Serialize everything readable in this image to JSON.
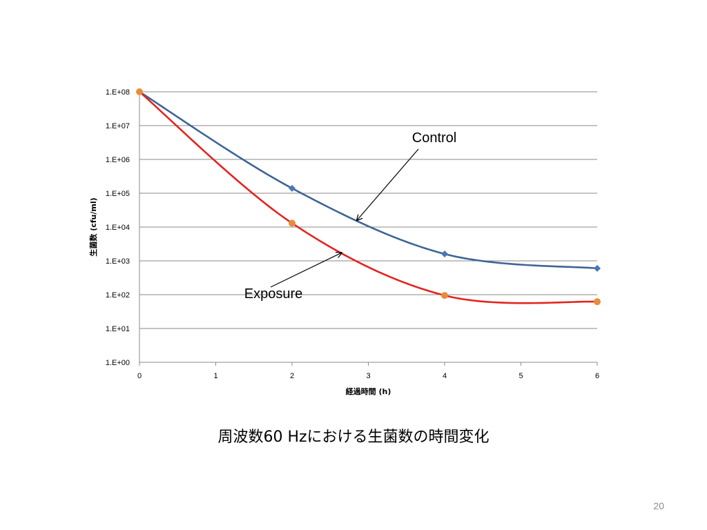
{
  "chart_data": {
    "type": "line",
    "title": "",
    "xlabel": "経過時間 (h)",
    "ylabel": "生菌数 (cfu/ml)",
    "yscale": "log",
    "xlim": [
      0,
      6
    ],
    "ylim": [
      1,
      100000000
    ],
    "x_ticks": [
      "0",
      "1",
      "2",
      "3",
      "4",
      "5",
      "6"
    ],
    "y_ticks": [
      "1.E+00",
      "1.E+01",
      "1.E+02",
      "1.E+03",
      "1.E+04",
      "1.E+05",
      "1.E+06",
      "1.E+07",
      "1.E+08"
    ],
    "grid": "horizontal",
    "legend": "none",
    "series": [
      {
        "name": "Control",
        "color": "#3d6495",
        "marker": "diamond",
        "marker_color": "#4a78b5",
        "smooth": true,
        "x": [
          0,
          2,
          4,
          6
        ],
        "y": [
          100000000,
          140000,
          1600,
          600
        ]
      },
      {
        "name": "Exposure",
        "color": "#e3231d",
        "marker": "circle",
        "marker_color": "#e98b3c",
        "smooth": true,
        "x": [
          0,
          2,
          4,
          6
        ],
        "y": [
          100000000,
          13000,
          95,
          62
        ]
      }
    ],
    "annotations": [
      {
        "text": "Control",
        "series": "Control",
        "arrow_to_x": 2.85
      },
      {
        "text": "Exposure",
        "series": "Exposure",
        "arrow_to_x": 2.65
      }
    ]
  },
  "caption": "周波数60 Hzにおける生菌数の時間変化",
  "page_number": "20"
}
